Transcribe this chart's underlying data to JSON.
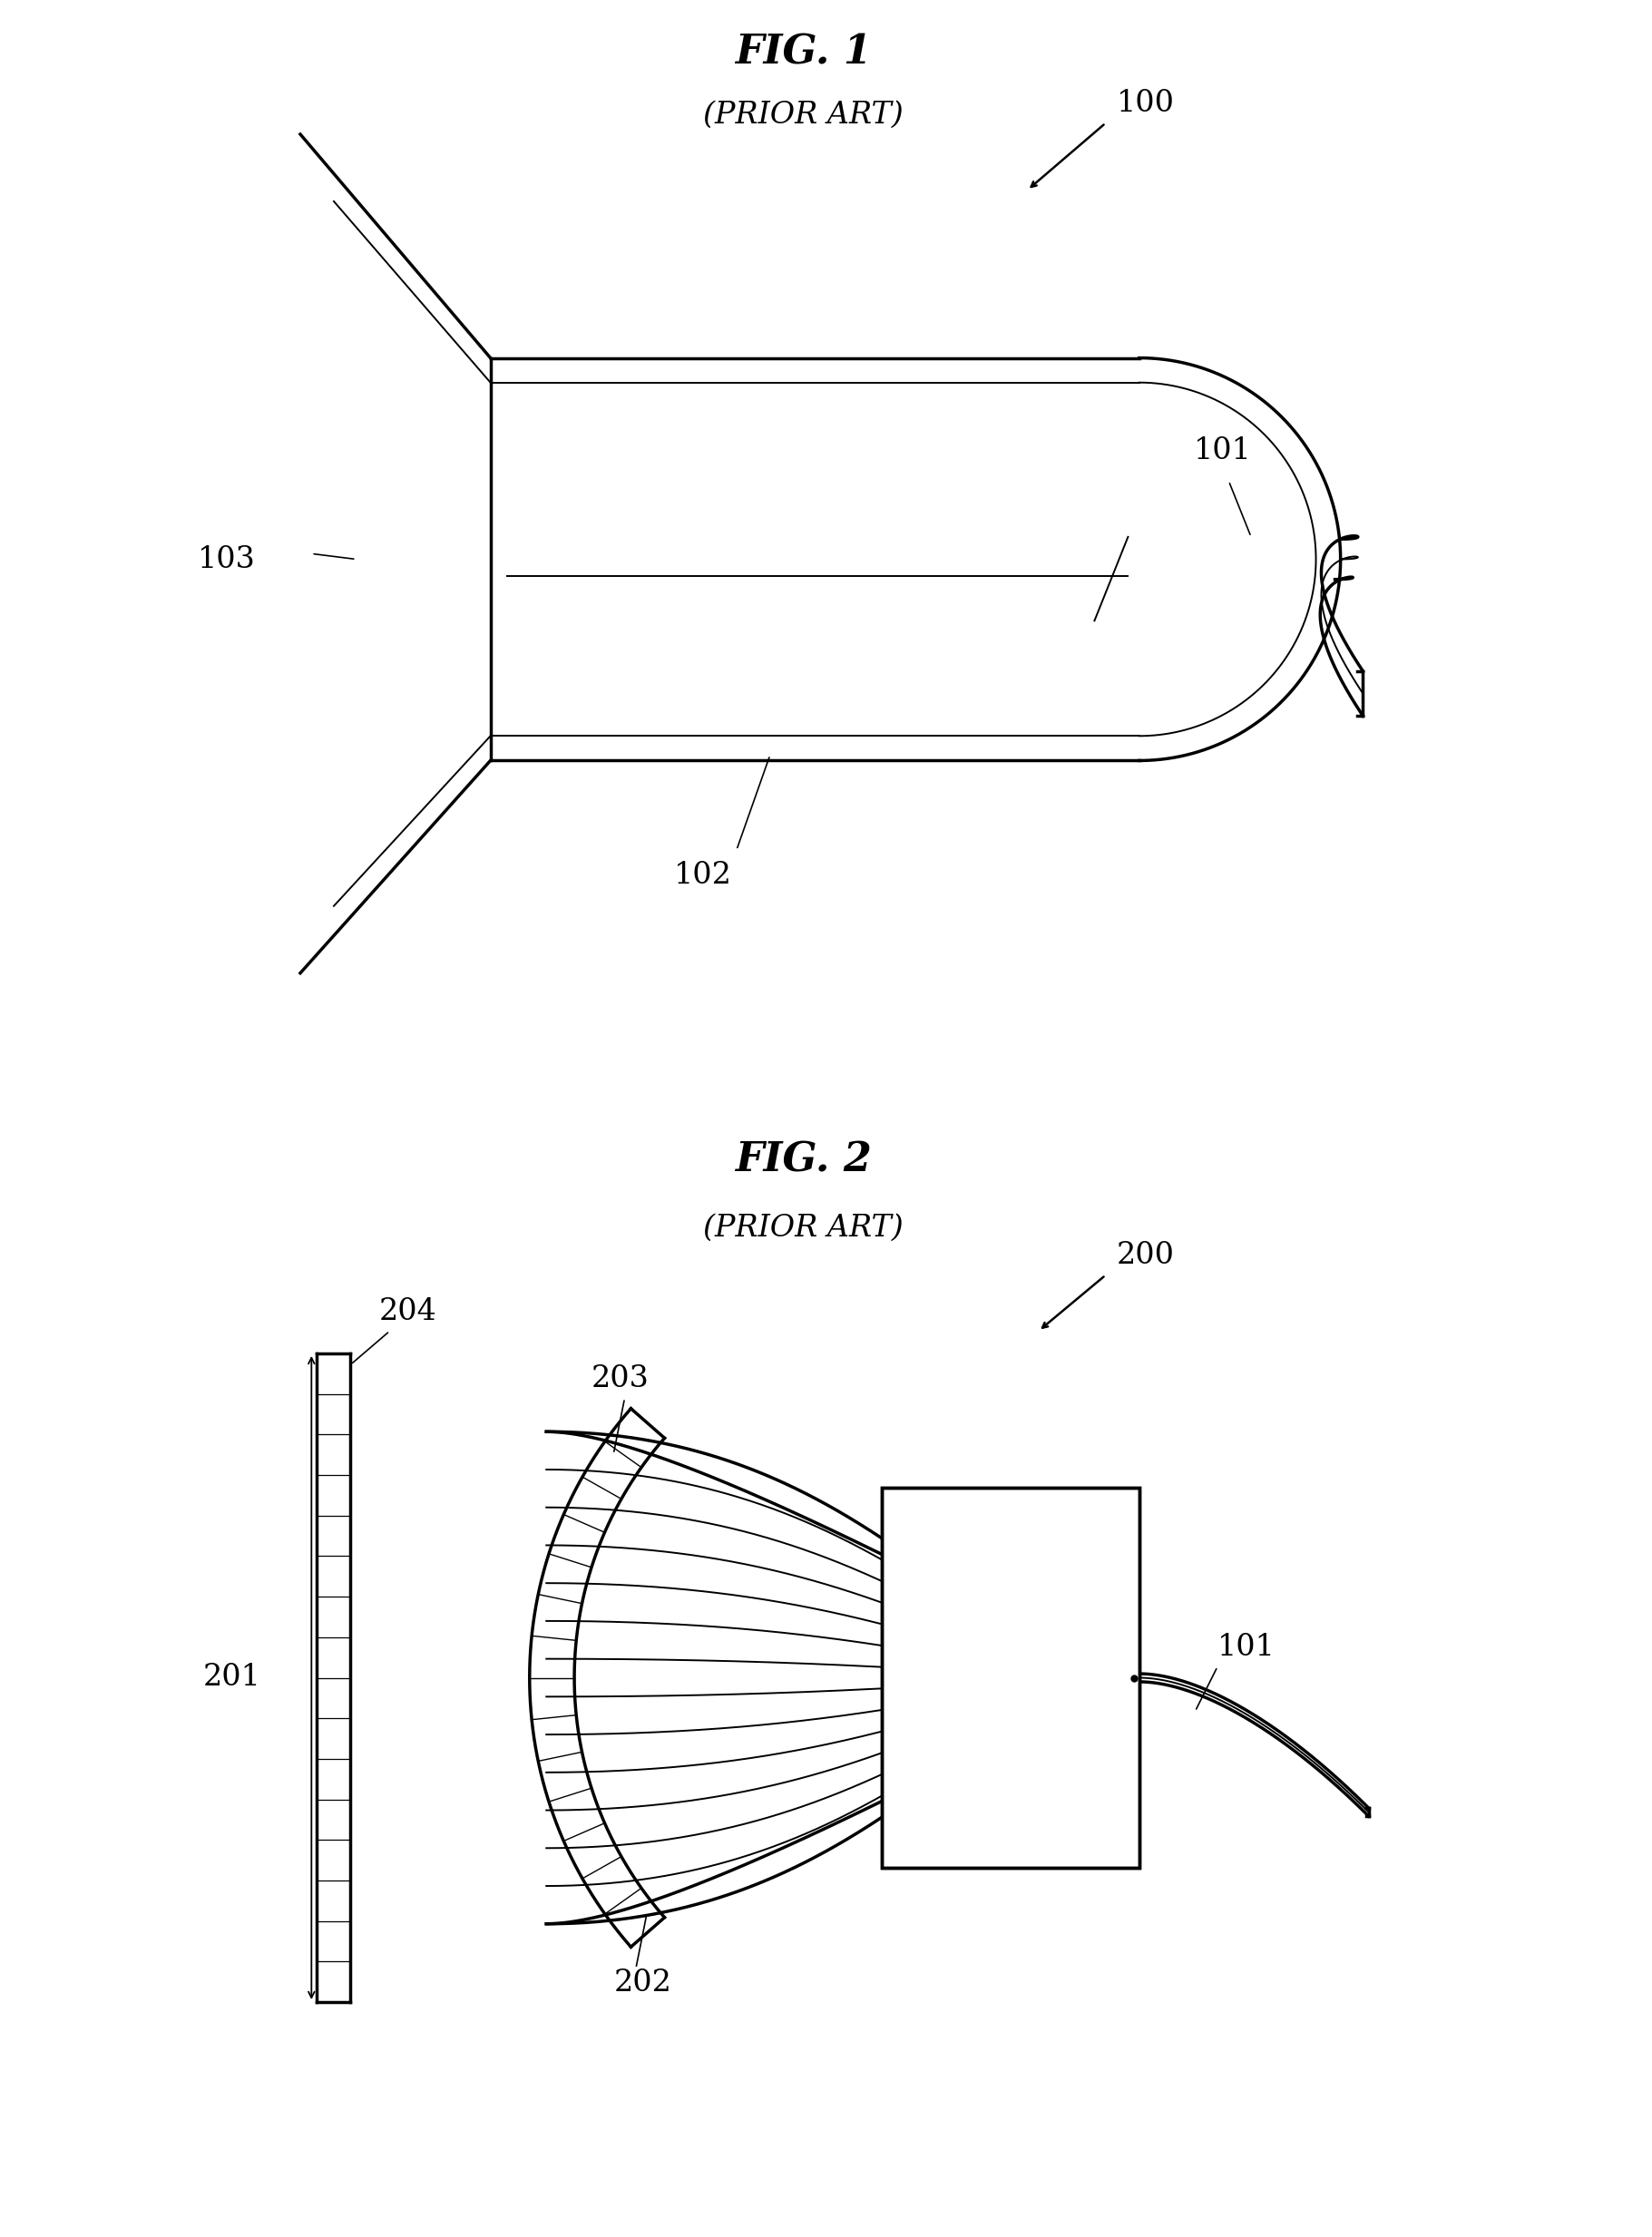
{
  "fig1_title": "FIG. 1",
  "fig1_subtitle": "(PRIOR ART)",
  "fig2_title": "FIG. 2",
  "fig2_subtitle": "(PRIOR ART)",
  "bg_color": "#ffffff",
  "line_color": "#000000",
  "title_fontsize": 32,
  "subtitle_fontsize": 24,
  "label_fontsize": 24,
  "lw_main": 2.5,
  "lw_thin": 1.4,
  "lw_inner": 1.0
}
